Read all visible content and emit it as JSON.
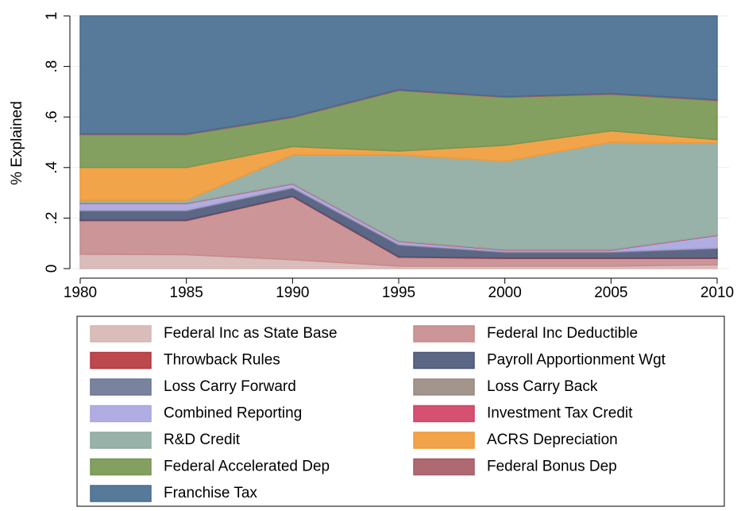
{
  "chart_data": {
    "type": "stacked_area",
    "y_label": "% Explained",
    "x": [
      1980,
      1985,
      1990,
      1995,
      2000,
      2005,
      2010
    ],
    "xlim": [
      1980,
      2010
    ],
    "xticks": [
      1980,
      1985,
      1990,
      1995,
      2000,
      2005,
      2010
    ],
    "ylim": [
      0,
      1
    ],
    "yticks": [
      0,
      {
        "value": 0.2,
        "label": ".2"
      },
      {
        "value": 0.4,
        "label": ".4"
      },
      {
        "value": 0.6,
        "label": ".6"
      },
      {
        "value": 0.8,
        "label": ".8"
      },
      1
    ],
    "grid": true,
    "legend": "bottom",
    "series": [
      {
        "name": "Federal Inc as State Base",
        "color": "#d6b5b2",
        "values": [
          0.057,
          0.055,
          0.035,
          0.01,
          0.01,
          0.01,
          0.015
        ]
      },
      {
        "name": "Federal Inc Deductible",
        "color": "#c7898c",
        "values": [
          0.133,
          0.135,
          0.25,
          0.035,
          0.03,
          0.03,
          0.025
        ]
      },
      {
        "name": "Throwback Rules",
        "color": "#b5353b",
        "values": [
          0.002,
          0.002,
          0.002,
          0.002,
          0.002,
          0.002,
          0.002
        ]
      },
      {
        "name": "Payroll Apportionment Wgt",
        "color": "#4a5578",
        "values": [
          0.035,
          0.035,
          0.03,
          0.045,
          0.021,
          0.021,
          0.036
        ]
      },
      {
        "name": "Loss Carry Forward",
        "color": "#6b7593",
        "values": [
          0.003,
          0.003,
          0.003,
          0.003,
          0.003,
          0.003,
          0.003
        ]
      },
      {
        "name": "Loss Carry Back",
        "color": "#998880",
        "values": [
          0.002,
          0.002,
          0.002,
          0.002,
          0.002,
          0.002,
          0.002
        ]
      },
      {
        "name": "Combined Reporting",
        "color": "#a7a4e0",
        "values": [
          0.025,
          0.025,
          0.013,
          0.01,
          0.005,
          0.005,
          0.048
        ]
      },
      {
        "name": "Investment Tax Credit",
        "color": "#d23e62",
        "values": [
          0.002,
          0.002,
          0.002,
          0.002,
          0.002,
          0.002,
          0.002
        ]
      },
      {
        "name": "R&D Credit",
        "color": "#8eaaa0",
        "values": [
          0.011,
          0.011,
          0.113,
          0.341,
          0.35,
          0.425,
          0.364
        ]
      },
      {
        "name": "ACRS Depreciation",
        "color": "#f19a36",
        "values": [
          0.13,
          0.13,
          0.033,
          0.015,
          0.063,
          0.045,
          0.013
        ]
      },
      {
        "name": "Federal Accelerated Dep",
        "color": "#76964f",
        "values": [
          0.13,
          0.13,
          0.115,
          0.24,
          0.19,
          0.145,
          0.155
        ]
      },
      {
        "name": "Federal Bonus Dep",
        "color": "#a65a62",
        "values": [
          0.003,
          0.003,
          0.003,
          0.003,
          0.003,
          0.003,
          0.003
        ]
      },
      {
        "name": "Franchise Tax",
        "color": "#456c8f",
        "values": [
          0.467,
          0.467,
          0.399,
          0.292,
          0.319,
          0.307,
          0.332
        ]
      }
    ]
  }
}
